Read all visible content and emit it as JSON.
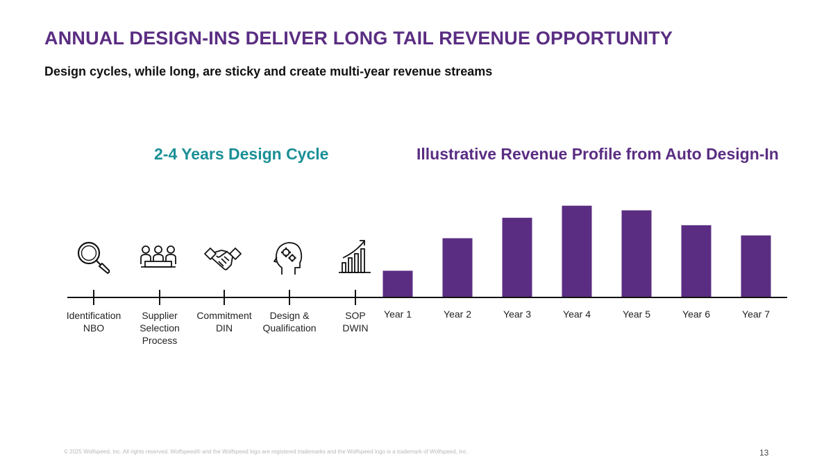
{
  "header": {
    "title": "ANNUAL DESIGN-INS DELIVER LONG TAIL REVENUE OPPORTUNITY",
    "subtitle": "Design cycles, while long, are sticky and create multi-year revenue streams"
  },
  "design_cycle": {
    "heading": "2-4 Years Design Cycle",
    "stages": [
      {
        "icon": "magnifier-icon",
        "lines": [
          "Identification",
          "NBO"
        ]
      },
      {
        "icon": "team-meeting-icon",
        "lines": [
          "Supplier",
          "Selection",
          "Process"
        ]
      },
      {
        "icon": "handshake-icon",
        "lines": [
          "Commitment",
          "DIN"
        ]
      },
      {
        "icon": "head-gears-icon",
        "lines": [
          "Design &",
          "Qualification"
        ]
      },
      {
        "icon": "growth-chart-icon",
        "lines": [
          "SOP",
          "DWIN"
        ]
      }
    ]
  },
  "chart_data": {
    "type": "bar",
    "title": "Illustrative Revenue Profile from Auto Design-In",
    "categories": [
      "Year 1",
      "Year 2",
      "Year 3",
      "Year 4",
      "Year 5",
      "Year 6",
      "Year 7"
    ],
    "values": [
      28,
      63,
      85,
      98,
      93,
      77,
      66
    ],
    "ylim": [
      0,
      100
    ],
    "xlabel": "",
    "ylabel": "",
    "grid": false,
    "bar_color": "#5a2d82"
  },
  "colors": {
    "primary_purple": "#5a2d82",
    "teal": "#1a8f96"
  },
  "footer": {
    "copyright": "© 2025 Wolfspeed, Inc. All rights reserved. Wolfspeed® and the Wolfspeed logo are registered trademarks and the Wolfspeed logo is a trademark of Wolfspeed, Inc.",
    "page_number": "13"
  }
}
